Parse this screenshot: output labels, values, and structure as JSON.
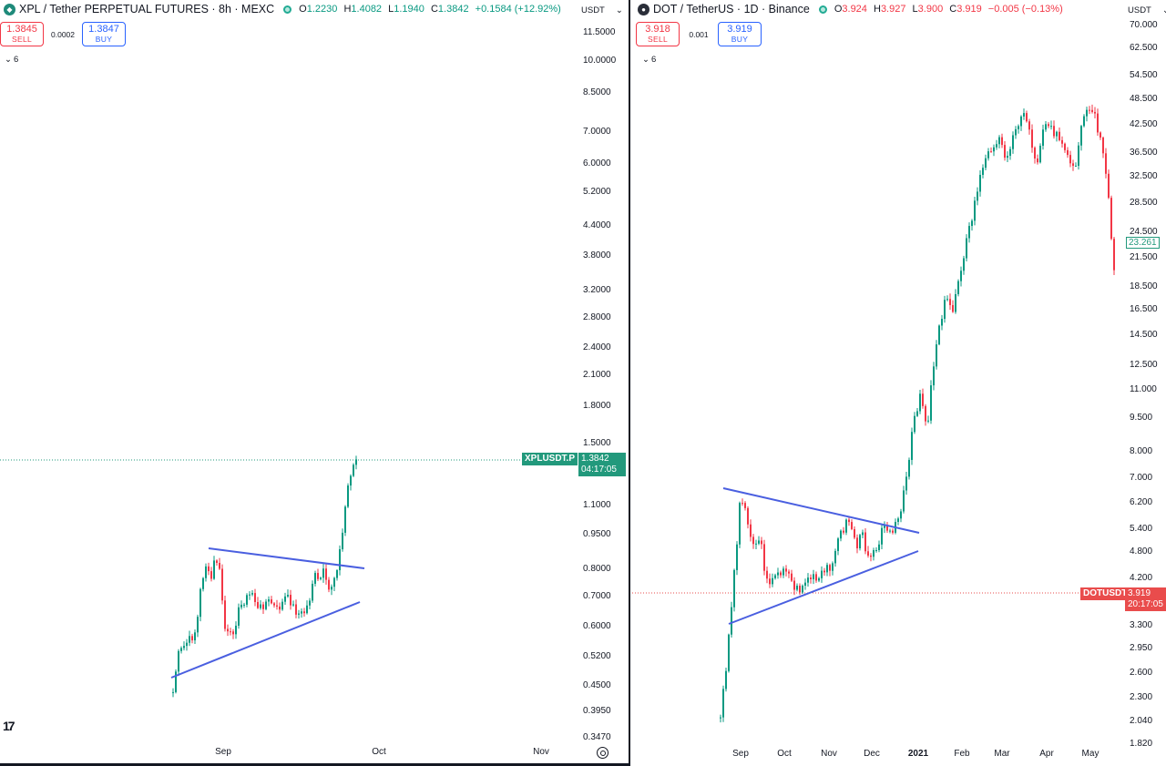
{
  "left": {
    "title": "XPL / Tether PERPETUAL FUTURES · 8h · MEXC",
    "ohlc": {
      "o_label": "O",
      "o": "1.2230",
      "h_label": "H",
      "h": "1.4082",
      "l_label": "L",
      "l": "1.1940",
      "c_label": "C",
      "c": "1.3842",
      "change": "+0.1584 (+12.92%)"
    },
    "sell": {
      "price": "1.3845",
      "label": "SELL"
    },
    "buy": {
      "price": "1.3847",
      "label": "BUY"
    },
    "spread": "0.0002",
    "indicators_count": "6",
    "currency": "USDT",
    "price_labels": [
      "11.5000",
      "10.0000",
      "8.5000",
      "7.0000",
      "6.0000",
      "5.2000",
      "4.4000",
      "3.8000",
      "3.2000",
      "2.8000",
      "2.4000",
      "2.1000",
      "1.8000",
      "1.5000",
      "1.1000",
      "0.9500",
      "0.8000",
      "0.7000",
      "0.6000",
      "0.5200",
      "0.4500",
      "0.3950",
      "0.3470"
    ],
    "time_labels": [
      "Sep",
      "Oct",
      "Nov"
    ],
    "symbol_tag": "XPLUSDT.P",
    "last_price": "1.3842",
    "countdown": "04:17:05",
    "colors": {
      "up": "#089981",
      "down": "#f23645",
      "trendline": "#4a5fe0"
    }
  },
  "right": {
    "title": "DOT / TetherUS · 1D · Binance",
    "ohlc": {
      "o_label": "O",
      "o": "3.924",
      "h_label": "H",
      "h": "3.927",
      "l_label": "L",
      "l": "3.900",
      "c_label": "C",
      "c": "3.919",
      "change": "−0.005 (−0.13%)"
    },
    "sell": {
      "price": "3.918",
      "label": "SELL"
    },
    "buy": {
      "price": "3.919",
      "label": "BUY"
    },
    "spread": "0.001",
    "indicators_count": "6",
    "currency": "USDT",
    "price_labels": [
      "70.000",
      "62.500",
      "54.500",
      "48.500",
      "42.500",
      "36.500",
      "32.500",
      "28.500",
      "24.500",
      "21.500",
      "18.500",
      "16.500",
      "14.500",
      "12.500",
      "11.000",
      "9.500",
      "8.000",
      "7.000",
      "6.200",
      "5.400",
      "4.800",
      "4.200",
      "3.300",
      "2.950",
      "2.600",
      "2.300",
      "2.040",
      "1.820"
    ],
    "time_labels": [
      "Sep",
      "Oct",
      "Nov",
      "Dec",
      "2021",
      "Feb",
      "Mar",
      "Apr",
      "May"
    ],
    "crosshair_price": "23.261",
    "symbol_tag": "DOTUSDT",
    "last_price": "3.919",
    "countdown": "20:17:05",
    "colors": {
      "up": "#089981",
      "down": "#f23645",
      "trendline": "#4a5fe0"
    }
  }
}
